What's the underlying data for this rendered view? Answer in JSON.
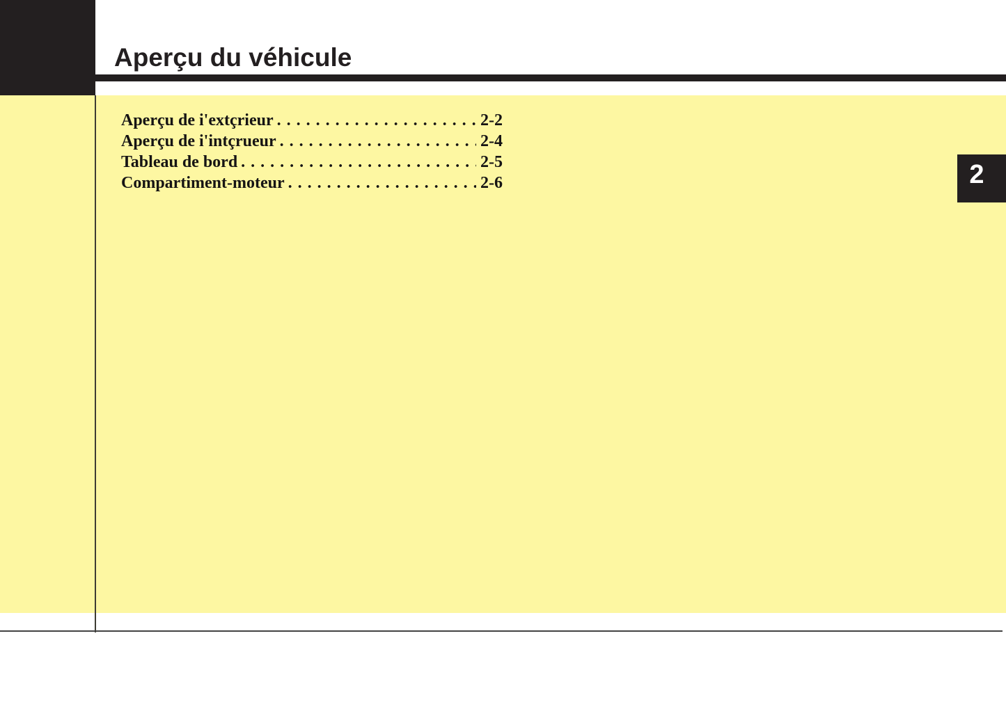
{
  "page": {
    "title": "Aperçu du véhicule",
    "chapter_number": "2"
  },
  "toc": {
    "leader_dots": ". . . . . . . . . . . . . . . . . . . . . . . . . . . . . . . . . . . . . . . . . . . . . . . . . . . . . . . . . . . .",
    "entries": [
      {
        "label": "Aperçu de i'extçrieur",
        "page": "2-2"
      },
      {
        "label": "Aperçu de i'intçrueur",
        "page": "2-4"
      },
      {
        "label": "Tableau de bord",
        "page": "2-5"
      },
      {
        "label": "Compartiment-moteur",
        "page": "2-6"
      }
    ]
  },
  "colors": {
    "highlight_yellow": "#FDF7A2",
    "print_black": "#231F20",
    "rule_gray": "#434343",
    "divider_gray": "#3d3c34",
    "tab_number_white": "#FFFFFF"
  }
}
